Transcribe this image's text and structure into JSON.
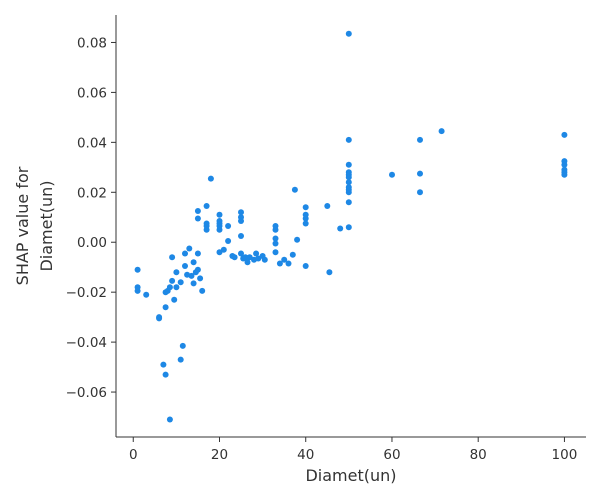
{
  "chart_data": {
    "type": "scatter",
    "title": "",
    "xlabel": "Diamet(un)",
    "ylabel_lines": [
      "SHAP value for",
      "Diamet(un)"
    ],
    "xlim": [
      -4,
      105
    ],
    "ylim": [
      -0.078,
      0.091
    ],
    "xticks": [
      0,
      20,
      40,
      60,
      80,
      100
    ],
    "xtick_labels": [
      "0",
      "20",
      "40",
      "60",
      "80",
      "100"
    ],
    "yticks": [
      -0.06,
      -0.04,
      -0.02,
      0.0,
      0.02,
      0.04,
      0.06,
      0.08
    ],
    "ytick_labels": [
      "−0.06",
      "−0.04",
      "−0.02",
      "0.00",
      "0.02",
      "0.04",
      "0.06",
      "0.08"
    ],
    "grid": false,
    "point_color": "#1E88E5",
    "points": [
      [
        1,
        -0.011
      ],
      [
        1,
        -0.018
      ],
      [
        1,
        -0.0195
      ],
      [
        3,
        -0.021
      ],
      [
        6,
        -0.03
      ],
      [
        6,
        -0.0305
      ],
      [
        7,
        -0.049
      ],
      [
        7.5,
        -0.053
      ],
      [
        7.5,
        -0.026
      ],
      [
        7.5,
        -0.02
      ],
      [
        8,
        -0.0195
      ],
      [
        8.5,
        -0.018
      ],
      [
        9,
        -0.0155
      ],
      [
        8.5,
        -0.071
      ],
      [
        9,
        -0.006
      ],
      [
        9.5,
        -0.023
      ],
      [
        10,
        -0.018
      ],
      [
        10,
        -0.012
      ],
      [
        11,
        -0.016
      ],
      [
        11,
        -0.047
      ],
      [
        11.5,
        -0.0415
      ],
      [
        12,
        -0.0045
      ],
      [
        12,
        -0.0095
      ],
      [
        12.5,
        -0.013
      ],
      [
        13,
        -0.0025
      ],
      [
        13.5,
        -0.0135
      ],
      [
        14,
        -0.0165
      ],
      [
        14,
        -0.008
      ],
      [
        14.5,
        -0.012
      ],
      [
        15,
        -0.011
      ],
      [
        15,
        -0.0045
      ],
      [
        15.5,
        -0.0145
      ],
      [
        15,
        0.0095
      ],
      [
        15,
        0.0125
      ],
      [
        16,
        -0.0195
      ],
      [
        17,
        0.0145
      ],
      [
        17,
        0.005
      ],
      [
        17,
        0.0065
      ],
      [
        17,
        0.0075
      ],
      [
        18,
        0.0255
      ],
      [
        20,
        0.011
      ],
      [
        20,
        0.0085
      ],
      [
        20,
        0.0075
      ],
      [
        20,
        0.0065
      ],
      [
        20,
        0.005
      ],
      [
        20,
        -0.004
      ],
      [
        21,
        -0.003
      ],
      [
        22,
        0.0065
      ],
      [
        22,
        0.0005
      ],
      [
        23,
        -0.0055
      ],
      [
        23.5,
        -0.006
      ],
      [
        25,
        0.012
      ],
      [
        25,
        0.01
      ],
      [
        25,
        0.0085
      ],
      [
        25,
        0.0025
      ],
      [
        25,
        -0.0045
      ],
      [
        25.5,
        -0.0065
      ],
      [
        26,
        -0.006
      ],
      [
        26.5,
        -0.008
      ],
      [
        27,
        -0.006
      ],
      [
        28,
        -0.007
      ],
      [
        28.5,
        -0.0045
      ],
      [
        29,
        -0.0065
      ],
      [
        30,
        -0.0055
      ],
      [
        30.5,
        -0.007
      ],
      [
        33,
        0.0065
      ],
      [
        33,
        0.005
      ],
      [
        33,
        0.0015
      ],
      [
        33,
        -0.0005
      ],
      [
        33,
        -0.004
      ],
      [
        34,
        -0.0085
      ],
      [
        35,
        -0.007
      ],
      [
        36,
        -0.0085
      ],
      [
        37,
        -0.005
      ],
      [
        37.5,
        0.021
      ],
      [
        38,
        0.001
      ],
      [
        40,
        0.014
      ],
      [
        40,
        0.011
      ],
      [
        40,
        0.0095
      ],
      [
        40,
        0.0075
      ],
      [
        40,
        -0.0095
      ],
      [
        45,
        0.0145
      ],
      [
        45.5,
        -0.012
      ],
      [
        48,
        0.0055
      ],
      [
        50,
        0.0835
      ],
      [
        50,
        0.041
      ],
      [
        50,
        0.031
      ],
      [
        50,
        0.028
      ],
      [
        50,
        0.027
      ],
      [
        50,
        0.026
      ],
      [
        50,
        0.024
      ],
      [
        50,
        0.022
      ],
      [
        50,
        0.021
      ],
      [
        50,
        0.02
      ],
      [
        50,
        0.016
      ],
      [
        50,
        0.006
      ],
      [
        60,
        0.027
      ],
      [
        66.5,
        0.041
      ],
      [
        66.5,
        0.0275
      ],
      [
        66.5,
        0.02
      ],
      [
        71.5,
        0.0445
      ],
      [
        100,
        0.043
      ],
      [
        100,
        0.0325
      ],
      [
        100,
        0.031
      ],
      [
        100,
        0.029
      ],
      [
        100,
        0.028
      ],
      [
        100,
        0.027
      ]
    ]
  }
}
